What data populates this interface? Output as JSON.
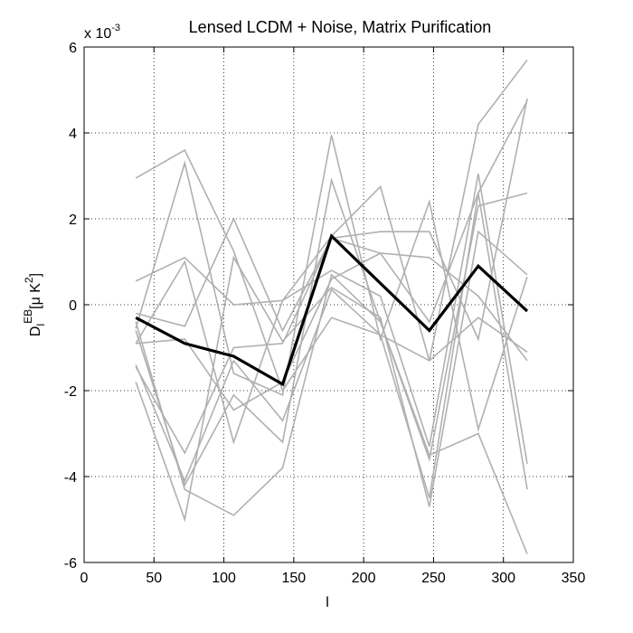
{
  "chart_data": {
    "type": "line",
    "title": "Lensed LCDM + Noise, Matrix Purification",
    "xlabel": "l",
    "ylabel": "D_l^{EB}[μ K^2]",
    "ylabel_parts": {
      "main": "D",
      "sub": "l",
      "sup": "EB",
      "unit_prefix": "[μ K",
      "unit_sup": "2",
      "unit_suffix": "]"
    },
    "y_multiplier": {
      "base": "x 10",
      "exponent": "-3"
    },
    "xlim": [
      0,
      350
    ],
    "ylim": [
      -6,
      6
    ],
    "xticks": [
      0,
      50,
      100,
      150,
      200,
      250,
      300,
      350
    ],
    "yticks": [
      -6,
      -4,
      -2,
      0,
      2,
      4,
      6
    ],
    "xtick_labels": [
      "0",
      "50",
      "100",
      "150",
      "200",
      "250",
      "300",
      "350"
    ],
    "ytick_labels": [
      "-6",
      "-4",
      "-2",
      "0",
      "2",
      "4",
      "6"
    ],
    "grid": true,
    "x": [
      37,
      72,
      107,
      142,
      177,
      212,
      247,
      282,
      317
    ],
    "series": [
      {
        "style": "mean",
        "color": "#000000",
        "values": [
          -0.3,
          -0.9,
          -1.2,
          -1.85,
          1.6,
          0.5,
          -0.6,
          0.9,
          -0.15
        ]
      },
      {
        "style": "realization",
        "color": "#b0b0b0",
        "values": [
          2.95,
          3.6,
          1.25,
          -2.0,
          -0.3,
          -0.7,
          -1.3,
          4.2,
          5.7
        ]
      },
      {
        "style": "realization",
        "color": "#b0b0b0",
        "values": [
          0.55,
          1.1,
          0.0,
          0.1,
          1.6,
          2.75,
          -1.3,
          -0.3,
          -1.1
        ]
      },
      {
        "style": "realization",
        "color": "#b0b0b0",
        "values": [
          -0.55,
          3.3,
          -1.6,
          -2.1,
          3.95,
          -0.8,
          2.4,
          -2.9,
          0.65
        ]
      },
      {
        "style": "realization",
        "color": "#b0b0b0",
        "values": [
          -0.2,
          -0.5,
          2.0,
          -0.6,
          1.55,
          1.7,
          1.7,
          -0.8,
          4.8
        ]
      },
      {
        "style": "realization",
        "color": "#b0b0b0",
        "values": [
          -0.6,
          -4.2,
          -2.1,
          -3.2,
          2.9,
          -0.4,
          -3.6,
          2.3,
          2.6
        ]
      },
      {
        "style": "realization",
        "color": "#b0b0b0",
        "values": [
          -1.8,
          -5.0,
          1.1,
          -0.85,
          0.4,
          -0.3,
          -4.7,
          1.7,
          0.7
        ]
      },
      {
        "style": "realization",
        "color": "#b0b0b0",
        "values": [
          -0.9,
          1.0,
          -3.2,
          0.1,
          0.8,
          0.2,
          -3.3,
          3.05,
          -3.7
        ]
      },
      {
        "style": "realization",
        "color": "#b0b0b0",
        "values": [
          -1.45,
          -3.45,
          -1.0,
          -0.9,
          1.55,
          1.2,
          -0.4,
          2.6,
          -4.3
        ]
      },
      {
        "style": "realization",
        "color": "#b0b0b0",
        "values": [
          -0.4,
          -4.3,
          -4.9,
          -3.8,
          0.7,
          -0.4,
          -3.5,
          -3.0,
          -5.8
        ]
      },
      {
        "style": "realization",
        "color": "#b0b0b0",
        "values": [
          -0.9,
          -0.8,
          -2.45,
          -1.8,
          0.6,
          1.2,
          1.1,
          0.2,
          -1.3
        ]
      },
      {
        "style": "realization",
        "color": "#b0b0b0",
        "values": [
          -1.4,
          -4.1,
          -1.3,
          -2.7,
          0.35,
          -0.7,
          -4.5,
          2.6,
          4.75
        ]
      }
    ]
  }
}
